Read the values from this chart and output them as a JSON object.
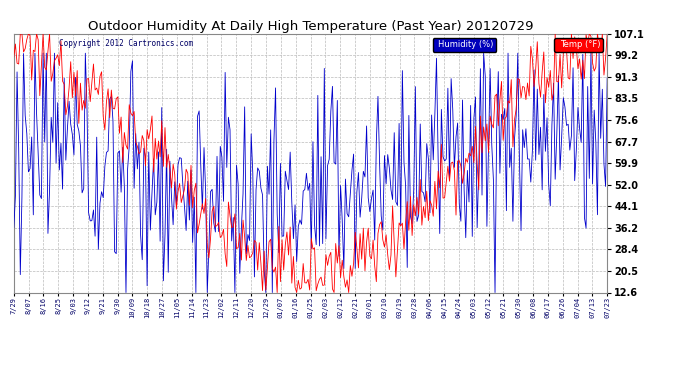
{
  "title": "Outdoor Humidity At Daily High Temperature (Past Year) 20120729",
  "copyright": "Copyright 2012 Cartronics.com",
  "legend_humidity": "Humidity (%)",
  "legend_temp": "Temp (°F)",
  "humidity_color": "#0000cc",
  "temp_color": "#ff0000",
  "bg_color": "#ffffff",
  "plot_bg_color": "#ffffff",
  "grid_color": "#bbbbbb",
  "title_color": "#000000",
  "title_fontsize": 9.5,
  "ylabel_right_values": [
    107.1,
    99.2,
    91.3,
    83.5,
    75.6,
    67.7,
    59.9,
    52.0,
    44.1,
    36.2,
    28.4,
    20.5,
    12.6
  ],
  "ylim": [
    12.6,
    107.1
  ],
  "x_tick_labels": [
    "7/29",
    "8/07",
    "8/16",
    "8/25",
    "9/03",
    "9/12",
    "9/21",
    "9/30",
    "10/09",
    "10/18",
    "10/27",
    "11/05",
    "11/14",
    "11/23",
    "12/02",
    "12/11",
    "12/20",
    "12/29",
    "01/07",
    "01/16",
    "01/25",
    "02/03",
    "02/12",
    "02/21",
    "03/01",
    "03/10",
    "03/19",
    "03/28",
    "04/06",
    "04/15",
    "04/24",
    "05/03",
    "05/12",
    "05/21",
    "05/30",
    "06/08",
    "06/17",
    "06/26",
    "07/04",
    "07/13",
    "07/23"
  ],
  "n_points": 366
}
